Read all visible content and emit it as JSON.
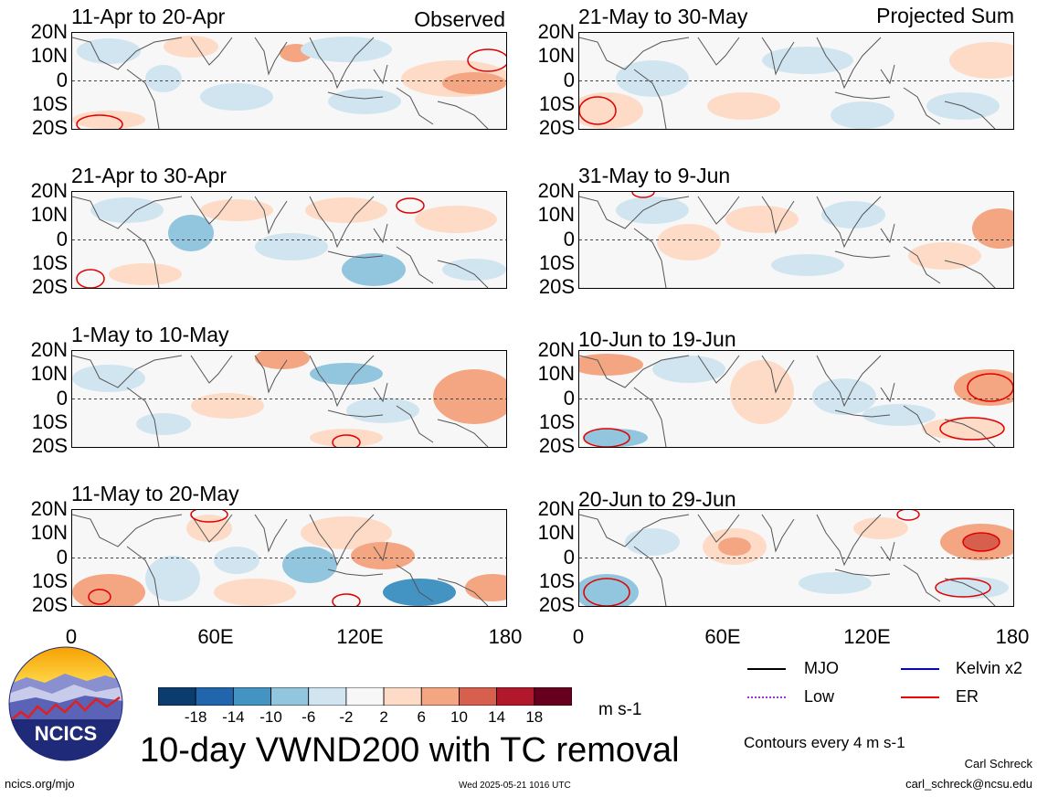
{
  "chart_data": {
    "type": "heatmap",
    "title": "10-day VWND200 with TC removal",
    "units": "m s-1",
    "contour_note": "Contours every 4 m s-1",
    "x_ticks": [
      "0",
      "60E",
      "120E",
      "180"
    ],
    "y_ticks": [
      "20N",
      "10N",
      "0",
      "10S",
      "20S"
    ],
    "xlim": [
      0,
      180
    ],
    "ylim": [
      -20,
      20
    ],
    "left_column_tag": "Observed",
    "right_column_tag": "Projected Sum",
    "panels": [
      {
        "title": "11-Apr to 20-Apr",
        "column": "Observed"
      },
      {
        "title": "21-Apr to 30-Apr",
        "column": "Observed"
      },
      {
        "title": "1-May to 10-May",
        "column": "Observed"
      },
      {
        "title": "11-May to 20-May",
        "column": "Observed"
      },
      {
        "title": "21-May to 30-May",
        "column": "Projected Sum"
      },
      {
        "title": "31-May to 9-Jun",
        "column": "Projected Sum"
      },
      {
        "title": "10-Jun to 19-Jun",
        "column": "Projected Sum"
      },
      {
        "title": "20-Jun to 29-Jun",
        "column": "Projected Sum"
      }
    ],
    "colorbar": {
      "labels": [
        "-18",
        "-14",
        "-10",
        "-6",
        "-2",
        "2",
        "6",
        "10",
        "14",
        "18"
      ],
      "colors": [
        "#0b3c6e",
        "#2166ac",
        "#4393c3",
        "#92c5de",
        "#d1e5f0",
        "#f7f7f7",
        "#fddbc7",
        "#f4a582",
        "#d6604d",
        "#b2182b",
        "#67001f"
      ]
    },
    "legend": [
      {
        "name": "MJO",
        "color": "#000000"
      },
      {
        "name": "Kelvin x2",
        "color": "#0000ee"
      },
      {
        "name": "Low",
        "color": "#9933cc"
      },
      {
        "name": "ER",
        "color": "#ee0000"
      }
    ]
  },
  "footer": {
    "logo_text": "NCICS",
    "url": "ncics.org/mjo",
    "timestamp": "Wed 2025-05-21 1016 UTC",
    "author": "Carl Schreck",
    "email": "carl_schreck@ncsu.edu"
  }
}
